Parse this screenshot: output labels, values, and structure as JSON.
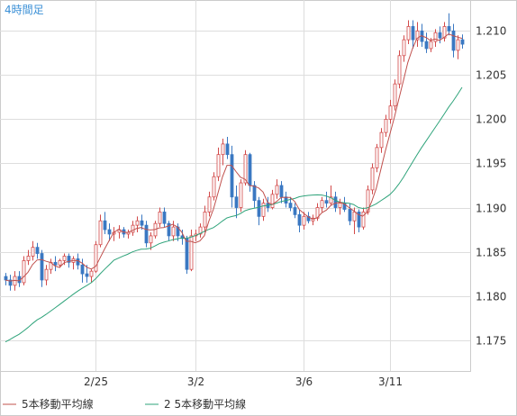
{
  "timeframe_label": "4時間足",
  "chart_data": {
    "type": "candlestick",
    "ylim": [
      1.1715,
      1.2135
    ],
    "y_ticks": [
      "1.175",
      "1.180",
      "1.185",
      "1.190",
      "1.195",
      "1.200",
      "1.205",
      "1.210"
    ],
    "x_ticks": [
      {
        "label": "2/25",
        "index": 20
      },
      {
        "label": "3/2",
        "index": 42
      },
      {
        "label": "3/6",
        "index": 66
      },
      {
        "label": "3/11",
        "index": 85
      }
    ],
    "grid": true,
    "legend_position": "bottom",
    "series": [
      {
        "name": "5本移動平均線",
        "color": "#c0504d"
      },
      {
        "name": "2 5本移動平均線",
        "color": "#2ea37a"
      }
    ],
    "candles": [
      [
        1.1822,
        1.1826,
        1.1812,
        1.1818
      ],
      [
        1.1818,
        1.1824,
        1.1806,
        1.1812
      ],
      [
        1.1812,
        1.1828,
        1.1806,
        1.1822
      ],
      [
        1.1822,
        1.1828,
        1.181,
        1.1815
      ],
      [
        1.1815,
        1.1845,
        1.1812,
        1.184
      ],
      [
        1.184,
        1.1852,
        1.1835,
        1.1845
      ],
      [
        1.1845,
        1.1862,
        1.184,
        1.1855
      ],
      [
        1.1855,
        1.186,
        1.1842,
        1.1848
      ],
      [
        1.1848,
        1.1852,
        1.181,
        1.1818
      ],
      [
        1.1818,
        1.1835,
        1.1812,
        1.183
      ],
      [
        1.183,
        1.1842,
        1.1825,
        1.1838
      ],
      [
        1.1838,
        1.1845,
        1.1828,
        1.1835
      ],
      [
        1.1835,
        1.1842,
        1.1832,
        1.184
      ],
      [
        1.184,
        1.1848,
        1.1835,
        1.1845
      ],
      [
        1.1845,
        1.1848,
        1.1832,
        1.1838
      ],
      [
        1.1838,
        1.1845,
        1.183,
        1.1842
      ],
      [
        1.1842,
        1.1848,
        1.183,
        1.1835
      ],
      [
        1.1835,
        1.1842,
        1.1815,
        1.1825
      ],
      [
        1.1825,
        1.1835,
        1.1815,
        1.1822
      ],
      [
        1.1822,
        1.183,
        1.1815,
        1.1828
      ],
      [
        1.1828,
        1.1862,
        1.1826,
        1.1858
      ],
      [
        1.1858,
        1.1892,
        1.1855,
        1.1885
      ],
      [
        1.1885,
        1.1895,
        1.187,
        1.1875
      ],
      [
        1.1875,
        1.1882,
        1.1862,
        1.187
      ],
      [
        1.187,
        1.1878,
        1.1862,
        1.1872
      ],
      [
        1.1872,
        1.188,
        1.1865,
        1.1875
      ],
      [
        1.1875,
        1.1878,
        1.1866,
        1.187
      ],
      [
        1.187,
        1.1875,
        1.1865,
        1.1872
      ],
      [
        1.1872,
        1.1885,
        1.1868,
        1.188
      ],
      [
        1.188,
        1.189,
        1.1872,
        1.1885
      ],
      [
        1.1885,
        1.1892,
        1.1875,
        1.188
      ],
      [
        1.188,
        1.1885,
        1.1855,
        1.186
      ],
      [
        1.186,
        1.1872,
        1.1852,
        1.1868
      ],
      [
        1.1868,
        1.1885,
        1.1865,
        1.1882
      ],
      [
        1.1882,
        1.19,
        1.1878,
        1.1895
      ],
      [
        1.1895,
        1.19,
        1.1878,
        1.1882
      ],
      [
        1.1882,
        1.1885,
        1.1862,
        1.1868
      ],
      [
        1.1868,
        1.1885,
        1.1862,
        1.1878
      ],
      [
        1.1878,
        1.1882,
        1.1862,
        1.1868
      ],
      [
        1.1868,
        1.1875,
        1.1858,
        1.1865
      ],
      [
        1.1865,
        1.1868,
        1.1825,
        1.183
      ],
      [
        1.183,
        1.1875,
        1.1828,
        1.1868
      ],
      [
        1.1868,
        1.1875,
        1.1862,
        1.187
      ],
      [
        1.187,
        1.1882,
        1.1866,
        1.1878
      ],
      [
        1.1878,
        1.1902,
        1.1872,
        1.1895
      ],
      [
        1.1895,
        1.1918,
        1.189,
        1.1912
      ],
      [
        1.1912,
        1.194,
        1.1908,
        1.1935
      ],
      [
        1.1935,
        1.1968,
        1.193,
        1.196
      ],
      [
        1.196,
        1.1978,
        1.1948,
        1.1972
      ],
      [
        1.1972,
        1.198,
        1.1955,
        1.196
      ],
      [
        1.196,
        1.197,
        1.19,
        1.1912
      ],
      [
        1.1912,
        1.1925,
        1.1888,
        1.19
      ],
      [
        1.19,
        1.1932,
        1.1895,
        1.1928
      ],
      [
        1.1928,
        1.1965,
        1.1925,
        1.196
      ],
      [
        1.196,
        1.1962,
        1.1918,
        1.1925
      ],
      [
        1.1925,
        1.193,
        1.19,
        1.1908
      ],
      [
        1.1908,
        1.1912,
        1.188,
        1.189
      ],
      [
        1.189,
        1.191,
        1.1885,
        1.1905
      ],
      [
        1.1905,
        1.1912,
        1.1895,
        1.19
      ],
      [
        1.19,
        1.192,
        1.1898,
        1.1915
      ],
      [
        1.1915,
        1.1932,
        1.191,
        1.1925
      ],
      [
        1.1925,
        1.193,
        1.1905,
        1.1912
      ],
      [
        1.1912,
        1.1918,
        1.19,
        1.1905
      ],
      [
        1.1905,
        1.1912,
        1.1896,
        1.19
      ],
      [
        1.19,
        1.1905,
        1.1888,
        1.1892
      ],
      [
        1.1892,
        1.1898,
        1.1872,
        1.188
      ],
      [
        1.188,
        1.1895,
        1.1875,
        1.189
      ],
      [
        1.189,
        1.1895,
        1.1882,
        1.1885
      ],
      [
        1.1885,
        1.1892,
        1.188,
        1.1888
      ],
      [
        1.1888,
        1.1905,
        1.1885,
        1.19
      ],
      [
        1.19,
        1.1912,
        1.1895,
        1.1908
      ],
      [
        1.1908,
        1.1918,
        1.19,
        1.1905
      ],
      [
        1.1905,
        1.1925,
        1.1902,
        1.1912
      ],
      [
        1.1912,
        1.1918,
        1.1895,
        1.19
      ],
      [
        1.19,
        1.191,
        1.1892,
        1.1905
      ],
      [
        1.1905,
        1.1912,
        1.1895,
        1.1898
      ],
      [
        1.1898,
        1.1905,
        1.188,
        1.1885
      ],
      [
        1.1885,
        1.19,
        1.187,
        1.1895
      ],
      [
        1.1895,
        1.1898,
        1.1872,
        1.1878
      ],
      [
        1.1878,
        1.19,
        1.1875,
        1.1895
      ],
      [
        1.1895,
        1.1925,
        1.1892,
        1.192
      ],
      [
        1.192,
        1.195,
        1.1915,
        1.1945
      ],
      [
        1.1945,
        1.1972,
        1.194,
        1.1968
      ],
      [
        1.1968,
        1.199,
        1.1962,
        1.1985
      ],
      [
        1.1985,
        1.2005,
        1.198,
        1.2
      ],
      [
        1.2,
        1.2022,
        1.1995,
        1.2015
      ],
      [
        1.2015,
        1.2045,
        1.201,
        1.204
      ],
      [
        1.204,
        1.2078,
        1.2035,
        1.2072
      ],
      [
        1.2072,
        1.2095,
        1.2065,
        1.209
      ],
      [
        1.209,
        1.2112,
        1.2085,
        1.2105
      ],
      [
        1.2105,
        1.2112,
        1.208,
        1.209
      ],
      [
        1.209,
        1.211,
        1.2082,
        1.21
      ],
      [
        1.21,
        1.2108,
        1.2082,
        1.2088
      ],
      [
        1.2088,
        1.2098,
        1.2075,
        1.208
      ],
      [
        1.208,
        1.2092,
        1.2076,
        1.2088
      ],
      [
        1.2088,
        1.2102,
        1.2082,
        1.2098
      ],
      [
        1.2098,
        1.2105,
        1.2086,
        1.2092
      ],
      [
        1.2092,
        1.211,
        1.2088,
        1.2105
      ],
      [
        1.2105,
        1.212,
        1.2095,
        1.21
      ],
      [
        1.21,
        1.2108,
        1.207,
        1.2078
      ],
      [
        1.2078,
        1.2095,
        1.2068,
        1.209
      ],
      [
        1.209,
        1.2096,
        1.208,
        1.2085
      ]
    ]
  }
}
